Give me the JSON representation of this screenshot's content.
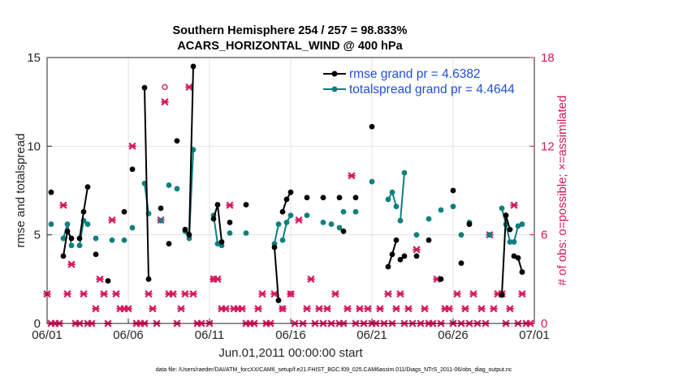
{
  "chart_data": {
    "type": "line",
    "title": "Southern Hemisphere 254 / 257 = 98.833%",
    "subtitle": "ACARS_HORIZONTAL_WIND @ 400 hPa",
    "xlabel": "Jun.01,2011 00:00:00 start",
    "ylabel": "rmse and totalspread",
    "y2label": "# of obs: o=possible; ×=assimilated",
    "footnote": "data file: /Users/raeder/DAI/ATM_forcXX/CAM6_setup/f.e21.FHIST_BGC.f09_025.CAM6assim.011/Diags_NTrS_2011-06/obs_diag_output.nc",
    "xlim": [
      0,
      30
    ],
    "ylim": [
      0,
      15
    ],
    "y2lim": [
      0,
      18
    ],
    "xticks": [
      0,
      5,
      10,
      15,
      20,
      25,
      30
    ],
    "xtick_labels": [
      "06/01",
      "06/06",
      "06/11",
      "06/16",
      "06/21",
      "06/26",
      "07/01"
    ],
    "yticks": [
      0,
      5,
      10,
      15
    ],
    "ytick_labels": [
      "0",
      "5",
      "10",
      "15"
    ],
    "y2ticks": [
      0,
      6,
      12,
      18
    ],
    "y2tick_labels": [
      "0",
      "6",
      "12",
      "18"
    ],
    "legend_position": "top-right",
    "colors": {
      "rmse": "#000000",
      "spread": "#0f7f7f",
      "obs": "#d6185d"
    },
    "series": [
      {
        "name": "rmse grand pr = 4.6382",
        "axis": "left",
        "segments": [
          [
            [
              0.25,
              7.4
            ]
          ],
          [
            [
              1.0,
              3.8
            ],
            [
              1.25,
              5.2
            ],
            [
              1.5,
              4.8
            ]
          ],
          [
            [
              2.0,
              4.8
            ],
            [
              2.25,
              6.3
            ],
            [
              2.5,
              7.7
            ]
          ],
          [
            [
              3.0,
              3.9
            ]
          ],
          [
            [
              3.75,
              2.4
            ]
          ],
          [
            [
              4.75,
              6.3
            ]
          ],
          [
            [
              5.25,
              8.7
            ]
          ],
          [
            [
              6.0,
              13.3
            ],
            [
              6.25,
              2.5
            ]
          ],
          [
            [
              7.0,
              6.5
            ]
          ],
          [
            [
              7.5,
              4.5
            ]
          ],
          [
            [
              8.0,
              10.3
            ]
          ],
          [
            [
              8.5,
              5.3
            ],
            [
              8.75,
              5.0
            ],
            [
              9.0,
              14.5
            ]
          ],
          [
            [
              10.25,
              5.9
            ],
            [
              10.5,
              6.7
            ],
            [
              10.75,
              4.6
            ]
          ],
          [
            [
              11.25,
              5.7
            ]
          ],
          [
            [
              12.25,
              6.7
            ]
          ],
          [
            [
              14.0,
              4.3
            ],
            [
              14.25,
              1.3
            ]
          ],
          [
            [
              14.5,
              6.3
            ],
            [
              14.75,
              7.0
            ],
            [
              15.0,
              7.4
            ]
          ],
          [
            [
              16.0,
              7.1
            ]
          ],
          [
            [
              17.0,
              7.1
            ]
          ],
          [
            [
              18.0,
              7.1
            ]
          ],
          [
            [
              18.25,
              5.2
            ]
          ],
          [
            [
              19.0,
              7.1
            ]
          ],
          [
            [
              20.0,
              11.1
            ]
          ],
          [
            [
              21.0,
              3.2
            ],
            [
              21.25,
              3.9
            ],
            [
              21.5,
              4.7
            ]
          ],
          [
            [
              21.75,
              3.6
            ],
            [
              22.0,
              3.8
            ]
          ],
          [
            [
              22.75,
              3.8
            ]
          ],
          [
            [
              23.5,
              4.7
            ]
          ],
          [
            [
              24.25,
              2.5
            ]
          ],
          [
            [
              25.0,
              7.5
            ]
          ],
          [
            [
              25.5,
              3.4
            ]
          ],
          [
            [
              26.0,
              5.6
            ]
          ],
          [
            [
              28.0,
              1.6
            ],
            [
              28.25,
              6.1
            ],
            [
              28.5,
              5.3
            ]
          ],
          [
            [
              28.75,
              3.8
            ],
            [
              29.0,
              3.7
            ],
            [
              29.25,
              2.9
            ]
          ]
        ]
      },
      {
        "name": "totalspread grand pr = 4.4644",
        "axis": "left",
        "segments": [
          [
            [
              0.25,
              5.6
            ]
          ],
          [
            [
              1.0,
              4.8
            ],
            [
              1.25,
              5.6
            ],
            [
              1.5,
              4.4
            ]
          ],
          [
            [
              2.0,
              4.4
            ],
            [
              2.25,
              5.8
            ],
            [
              2.5,
              5.6
            ]
          ],
          [
            [
              3.0,
              4.8
            ]
          ],
          [
            [
              4.0,
              4.7
            ]
          ],
          [
            [
              4.75,
              4.7
            ]
          ],
          [
            [
              5.25,
              5.4
            ]
          ],
          [
            [
              6.0,
              7.9
            ],
            [
              6.25,
              6.2
            ]
          ],
          [
            [
              7.0,
              5.8
            ]
          ],
          [
            [
              7.5,
              7.8
            ]
          ],
          [
            [
              8.0,
              7.6
            ]
          ],
          [
            [
              8.5,
              5.2
            ],
            [
              8.75,
              4.8
            ],
            [
              9.0,
              9.8
            ]
          ],
          [
            [
              10.25,
              6.1
            ],
            [
              10.5,
              4.5
            ],
            [
              10.75,
              4.4
            ]
          ],
          [
            [
              11.25,
              5.1
            ]
          ],
          [
            [
              12.25,
              5.1
            ]
          ],
          [
            [
              14.0,
              4.5
            ],
            [
              14.25,
              5.6
            ]
          ],
          [
            [
              14.5,
              4.7
            ],
            [
              14.75,
              5.7
            ],
            [
              15.0,
              6.1
            ]
          ],
          [
            [
              16.0,
              6.1
            ]
          ],
          [
            [
              17.0,
              5.7
            ]
          ],
          [
            [
              17.5,
              5.6
            ]
          ],
          [
            [
              18.0,
              5.4
            ]
          ],
          [
            [
              18.25,
              6.3
            ]
          ],
          [
            [
              19.0,
              6.3
            ]
          ],
          [
            [
              20.0,
              8.0
            ]
          ],
          [
            [
              21.0,
              7.0
            ],
            [
              21.25,
              7.4
            ],
            [
              21.5,
              6.6
            ]
          ],
          [
            [
              21.75,
              5.8
            ],
            [
              22.0,
              8.5
            ]
          ],
          [
            [
              22.75,
              5.0
            ]
          ],
          [
            [
              23.5,
              5.9
            ]
          ],
          [
            [
              24.25,
              6.4
            ]
          ],
          [
            [
              25.0,
              6.6
            ]
          ],
          [
            [
              25.5,
              5.0
            ]
          ],
          [
            [
              26.0,
              5.7
            ]
          ],
          [
            [
              27.25,
              5.0
            ]
          ],
          [
            [
              28.0,
              6.5
            ],
            [
              28.25,
              5.6
            ],
            [
              28.5,
              4.6
            ]
          ],
          [
            [
              28.75,
              4.6
            ],
            [
              29.0,
              5.5
            ],
            [
              29.25,
              5.6
            ]
          ]
        ]
      }
    ],
    "obs_assimilated": [
      [
        0.0,
        2
      ],
      [
        0.25,
        0
      ],
      [
        0.5,
        0
      ],
      [
        0.75,
        0
      ],
      [
        1.0,
        8
      ],
      [
        1.25,
        2
      ],
      [
        1.5,
        4
      ],
      [
        1.75,
        0
      ],
      [
        2.0,
        0
      ],
      [
        2.25,
        2
      ],
      [
        2.5,
        0
      ],
      [
        2.75,
        0
      ],
      [
        3.0,
        1
      ],
      [
        3.25,
        3
      ],
      [
        3.5,
        2
      ],
      [
        3.75,
        0
      ],
      [
        4.0,
        7
      ],
      [
        4.25,
        2
      ],
      [
        4.5,
        1
      ],
      [
        4.75,
        1
      ],
      [
        5.0,
        1
      ],
      [
        5.25,
        12
      ],
      [
        5.5,
        0
      ],
      [
        5.75,
        0
      ],
      [
        6.0,
        0
      ],
      [
        6.25,
        2
      ],
      [
        6.5,
        1
      ],
      [
        6.75,
        0
      ],
      [
        7.0,
        7
      ],
      [
        7.25,
        15
      ],
      [
        7.5,
        2
      ],
      [
        7.75,
        2
      ],
      [
        8.0,
        0
      ],
      [
        8.25,
        1
      ],
      [
        8.5,
        2
      ],
      [
        8.75,
        16
      ],
      [
        9.0,
        2
      ],
      [
        9.25,
        0
      ],
      [
        9.5,
        0
      ],
      [
        10.0,
        0
      ],
      [
        10.25,
        3
      ],
      [
        10.5,
        3
      ],
      [
        10.75,
        1
      ],
      [
        11.0,
        1
      ],
      [
        11.25,
        8
      ],
      [
        11.5,
        1
      ],
      [
        11.75,
        1
      ],
      [
        12.0,
        1
      ],
      [
        12.25,
        0
      ],
      [
        12.5,
        0
      ],
      [
        12.75,
        0
      ],
      [
        13.0,
        1
      ],
      [
        13.25,
        2
      ],
      [
        13.5,
        0
      ],
      [
        13.75,
        0
      ],
      [
        14.0,
        2
      ],
      [
        14.5,
        1
      ],
      [
        15.0,
        2
      ],
      [
        15.25,
        0
      ],
      [
        15.5,
        7
      ],
      [
        15.75,
        0
      ],
      [
        16.0,
        1
      ],
      [
        16.25,
        3
      ],
      [
        16.5,
        0
      ],
      [
        16.75,
        1
      ],
      [
        17.0,
        0
      ],
      [
        17.25,
        1
      ],
      [
        17.5,
        0
      ],
      [
        17.75,
        2
      ],
      [
        18.0,
        0
      ],
      [
        18.25,
        0
      ],
      [
        18.5,
        1
      ],
      [
        18.75,
        10
      ],
      [
        19.0,
        0
      ],
      [
        19.25,
        1
      ],
      [
        19.5,
        0
      ],
      [
        19.75,
        1
      ],
      [
        20.0,
        0
      ],
      [
        20.25,
        0
      ],
      [
        20.5,
        1
      ],
      [
        20.75,
        0
      ],
      [
        21.0,
        2
      ],
      [
        21.25,
        0
      ],
      [
        21.5,
        1
      ],
      [
        21.75,
        2
      ],
      [
        22.0,
        0
      ],
      [
        22.25,
        1
      ],
      [
        22.5,
        0
      ],
      [
        22.75,
        5
      ],
      [
        23.0,
        0
      ],
      [
        23.25,
        1
      ],
      [
        23.5,
        0
      ],
      [
        23.75,
        0
      ],
      [
        24.0,
        3
      ],
      [
        24.25,
        0
      ],
      [
        24.5,
        1
      ],
      [
        24.75,
        1
      ],
      [
        25.0,
        0
      ],
      [
        25.25,
        2
      ],
      [
        25.5,
        0
      ],
      [
        25.75,
        1
      ],
      [
        26.0,
        0
      ],
      [
        26.25,
        2
      ],
      [
        26.5,
        0
      ],
      [
        26.75,
        1
      ],
      [
        27.0,
        0
      ],
      [
        27.25,
        6
      ],
      [
        27.5,
        1
      ],
      [
        27.75,
        2
      ],
      [
        28.0,
        2
      ],
      [
        28.25,
        0
      ],
      [
        28.5,
        1
      ],
      [
        28.75,
        8
      ],
      [
        29.0,
        0
      ],
      [
        29.25,
        2
      ],
      [
        29.5,
        0
      ],
      [
        29.75,
        0
      ]
    ],
    "obs_possible": [
      [
        7.25,
        16
      ],
      [
        10.25,
        3
      ],
      [
        15.0,
        2
      ],
      [
        14.5,
        1
      ]
    ],
    "legend": [
      {
        "label": "rmse grand pr = 4.6382",
        "series": 0
      },
      {
        "label": "totalspread grand pr = 4.4644",
        "series": 1
      }
    ]
  }
}
